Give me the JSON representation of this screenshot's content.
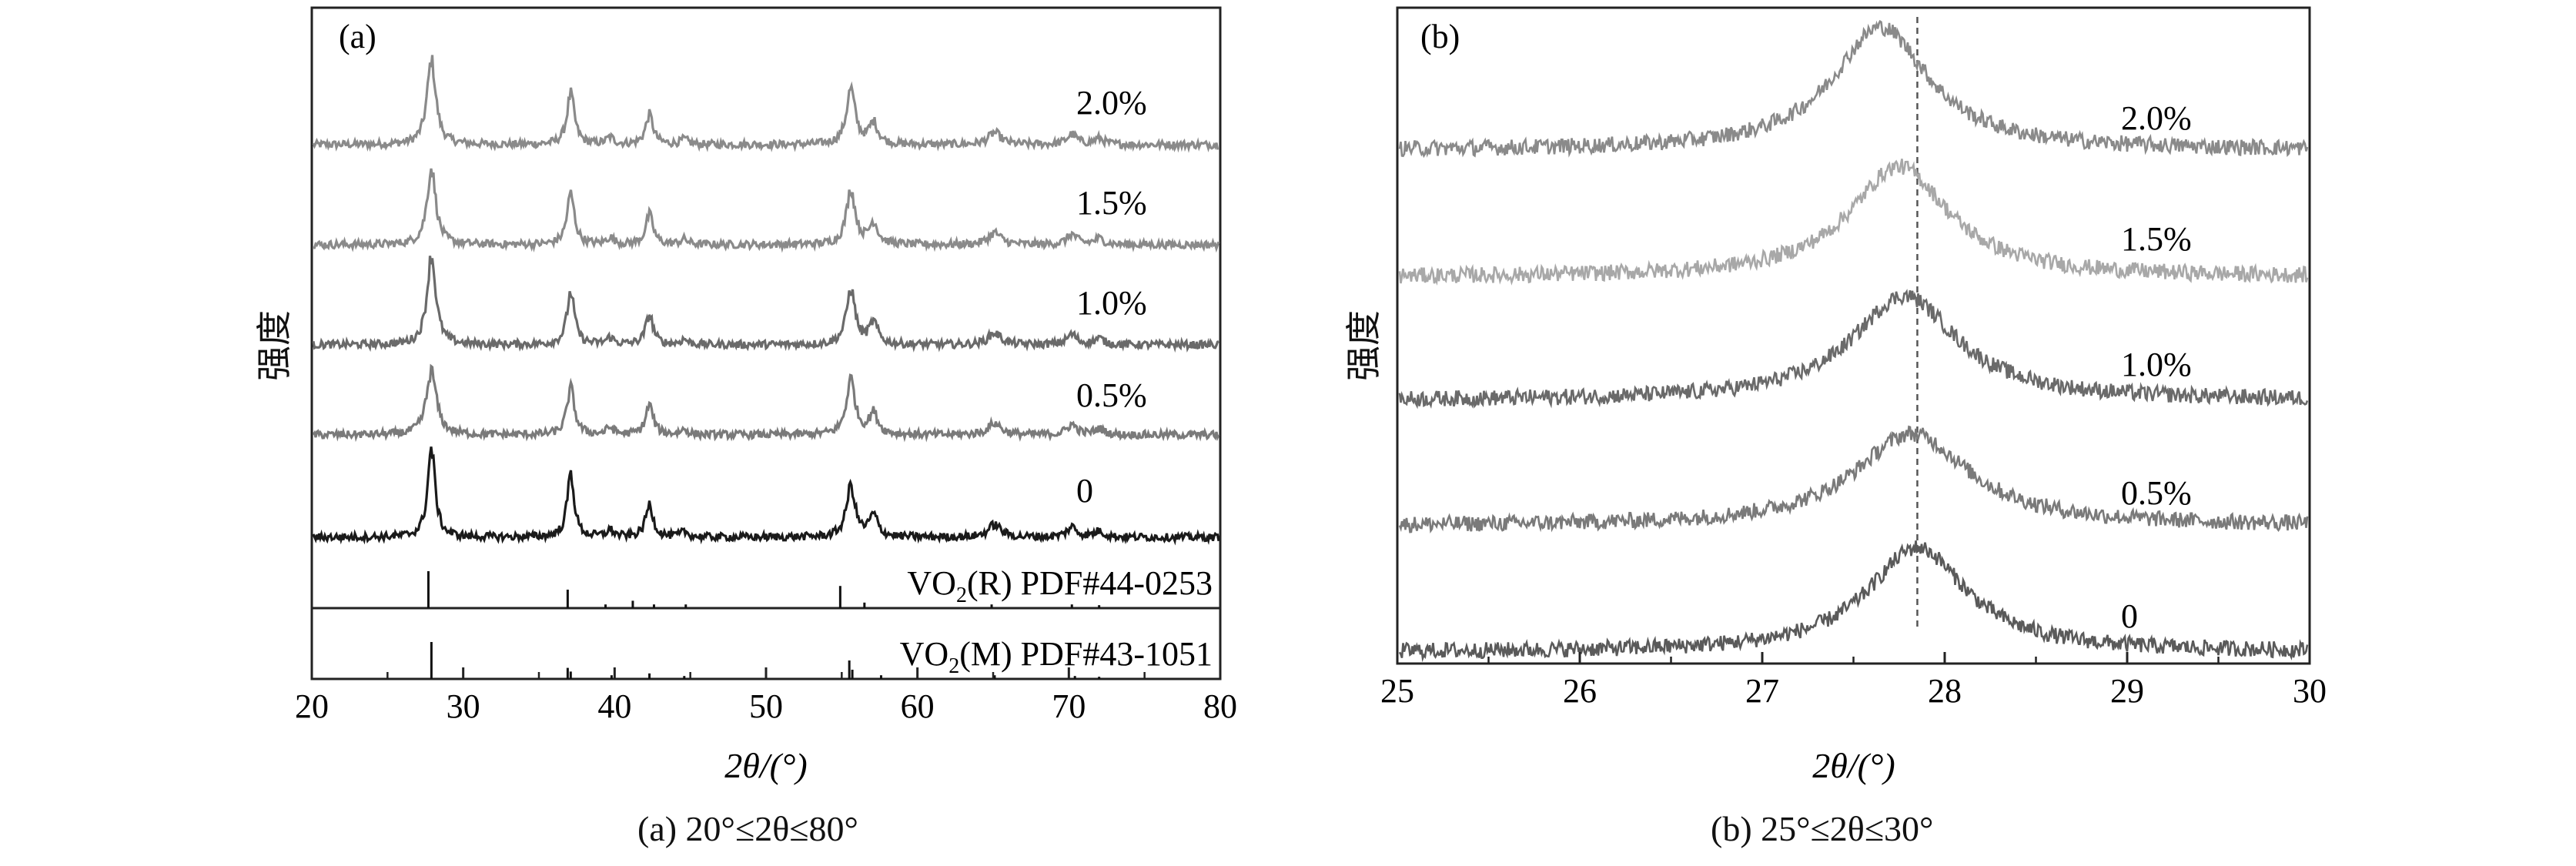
{
  "chart_data": [
    {
      "type": "line",
      "panel_label": "(a)",
      "caption": "(a) 20°≤2θ≤80°",
      "xlabel": "2θ/(°)",
      "ylabel": "强度",
      "xlim": [
        20,
        80
      ],
      "x_ticks": [
        "20",
        "30",
        "40",
        "50",
        "60",
        "70",
        "80"
      ],
      "grid": false,
      "series": [
        {
          "name": "2.0%",
          "color": "#8a8a8a",
          "baseline": 0,
          "peaks": [
            [
              27.9,
              10,
              0.35
            ],
            [
              37.1,
              6,
              0.3
            ],
            [
              39.7,
              0.8,
              0.3
            ],
            [
              42.3,
              3.5,
              0.3
            ],
            [
              44.6,
              0.6,
              0.3
            ],
            [
              55.6,
              6.5,
              0.35
            ],
            [
              57.1,
              2.5,
              0.35
            ],
            [
              65.1,
              1.4,
              0.5
            ],
            [
              70.2,
              1.2,
              0.4
            ],
            [
              72.0,
              0.7,
              0.4
            ]
          ]
        },
        {
          "name": "1.5%",
          "color": "#8a8a8a",
          "baseline": 0,
          "peaks": [
            [
              27.9,
              9,
              0.35
            ],
            [
              37.1,
              6,
              0.3
            ],
            [
              39.7,
              0.8,
              0.3
            ],
            [
              42.3,
              3.5,
              0.3
            ],
            [
              44.6,
              0.6,
              0.3
            ],
            [
              55.6,
              6.5,
              0.35
            ],
            [
              57.1,
              2.5,
              0.35
            ],
            [
              65.1,
              1.4,
              0.5
            ],
            [
              70.2,
              1.2,
              0.4
            ],
            [
              72.0,
              0.7,
              0.4
            ]
          ]
        },
        {
          "name": "1.0%",
          "color": "#6a6a6a",
          "baseline": 0,
          "peaks": [
            [
              27.9,
              10.5,
              0.35
            ],
            [
              37.1,
              6.2,
              0.3
            ],
            [
              39.7,
              0.8,
              0.3
            ],
            [
              42.3,
              3.5,
              0.3
            ],
            [
              44.6,
              0.6,
              0.3
            ],
            [
              55.6,
              6.5,
              0.35
            ],
            [
              57.1,
              2.5,
              0.35
            ],
            [
              65.1,
              1.4,
              0.5
            ],
            [
              70.2,
              1.2,
              0.4
            ],
            [
              72.0,
              0.7,
              0.4
            ]
          ]
        },
        {
          "name": "0.5%",
          "color": "#7a7a7a",
          "baseline": 0,
          "peaks": [
            [
              27.9,
              7.5,
              0.4
            ],
            [
              37.1,
              5.5,
              0.3
            ],
            [
              39.7,
              0.8,
              0.3
            ],
            [
              42.3,
              3.5,
              0.3
            ],
            [
              44.6,
              0.6,
              0.3
            ],
            [
              55.6,
              6.5,
              0.35
            ],
            [
              57.1,
              2.5,
              0.35
            ],
            [
              65.1,
              1.4,
              0.5
            ],
            [
              70.2,
              1.2,
              0.4
            ],
            [
              72.0,
              0.7,
              0.4
            ]
          ]
        },
        {
          "name": "0",
          "color": "#1a1a1a",
          "baseline": 0,
          "peaks": [
            [
              27.9,
              10.5,
              0.3
            ],
            [
              37.1,
              7.5,
              0.28
            ],
            [
              39.7,
              0.8,
              0.3
            ],
            [
              42.3,
              3.8,
              0.3
            ],
            [
              44.6,
              0.6,
              0.3
            ],
            [
              55.6,
              6.0,
              0.35
            ],
            [
              57.1,
              2.5,
              0.35
            ],
            [
              65.1,
              1.5,
              0.5
            ],
            [
              70.2,
              1.2,
              0.4
            ],
            [
              72.0,
              0.7,
              0.4
            ]
          ]
        }
      ],
      "references": [
        {
          "name": "VO2(R) PDF#44-0253",
          "name_main": "VO",
          "name_sub": "2",
          "name_rest": "(R) PDF#44-0253",
          "lines": [
            [
              27.7,
              1.0
            ],
            [
              36.9,
              0.5
            ],
            [
              39.4,
              0.1
            ],
            [
              41.2,
              0.2
            ],
            [
              42.6,
              0.1
            ],
            [
              44.7,
              0.1
            ],
            [
              54.9,
              0.6
            ],
            [
              56.5,
              0.15
            ],
            [
              64.9,
              0.1
            ],
            [
              70.2,
              0.1
            ],
            [
              72.0,
              0.08
            ]
          ]
        },
        {
          "name": "VO2(M) PDF#43-1051",
          "name_main": "VO",
          "name_sub": "2",
          "name_rest": "(M) PDF#43-1051",
          "lines": [
            [
              27.9,
              1.0
            ],
            [
              36.9,
              0.3
            ],
            [
              37.1,
              0.2
            ],
            [
              39.8,
              0.1
            ],
            [
              42.3,
              0.15
            ],
            [
              44.6,
              0.08
            ],
            [
              55.5,
              0.5
            ],
            [
              55.7,
              0.25
            ],
            [
              57.6,
              0.1
            ],
            [
              65.1,
              0.1
            ],
            [
              70.4,
              0.08
            ],
            [
              72.0,
              0.06
            ]
          ]
        }
      ]
    },
    {
      "type": "line",
      "panel_label": "(b)",
      "caption": "(b) 25°≤2θ≤30°",
      "xlabel": "2θ/(°)",
      "ylabel": "强度",
      "xlim": [
        25,
        30
      ],
      "x_ticks": [
        "25",
        "26",
        "27",
        "28",
        "29",
        "30"
      ],
      "grid": false,
      "reference_line_x": 27.85,
      "series": [
        {
          "name": "2.0%",
          "color": "#8a8a8a",
          "peak_center": 27.65,
          "peak_height": 10,
          "peak_width": 0.32
        },
        {
          "name": "1.5%",
          "color": "#a8a8a8",
          "peak_center": 27.75,
          "peak_height": 9,
          "peak_width": 0.33
        },
        {
          "name": "1.0%",
          "color": "#6a6a6a",
          "peak_center": 27.78,
          "peak_height": 8.5,
          "peak_width": 0.35
        },
        {
          "name": "0.5%",
          "color": "#7a7a7a",
          "peak_center": 27.82,
          "peak_height": 7.5,
          "peak_width": 0.38
        },
        {
          "name": "0",
          "color": "#5a5a5a",
          "peak_center": 27.85,
          "peak_height": 8.5,
          "peak_width": 0.33
        }
      ]
    }
  ]
}
